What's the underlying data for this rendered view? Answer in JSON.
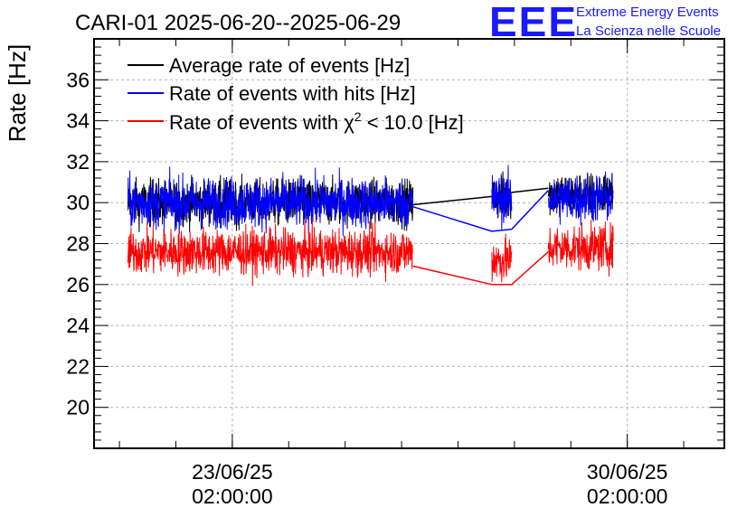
{
  "chart_data": {
    "type": "line",
    "title": "CARI-01 2025-06-20--2025-06-29",
    "ylabel": "Rate [Hz]",
    "xlabel": "",
    "ylim": [
      18,
      38
    ],
    "xlim_days": [
      -2.45,
      8.72
    ],
    "x_unit": "days since 23/06/25 02:00:00",
    "yticks": [
      20,
      22,
      24,
      26,
      28,
      30,
      32,
      34,
      36
    ],
    "xticks": [
      {
        "day": 0,
        "date": "23/06/25",
        "time": "02:00:00"
      },
      {
        "day": 7,
        "date": "30/06/25",
        "time": "02:00:00"
      }
    ],
    "grid": true,
    "legend_position": "top-left",
    "series": [
      {
        "name": "Average rate of events [Hz]",
        "color": "#000000",
        "segments": [
          {
            "x_start": -1.85,
            "x_end": 3.2,
            "mean": 30.0,
            "spread": 1.0
          },
          {
            "x_start": 4.6,
            "x_end": 4.95,
            "mean": 30.3,
            "spread": 1.0
          },
          {
            "x_start": 5.6,
            "x_end": 6.75,
            "mean": 30.4,
            "spread": 1.0
          }
        ]
      },
      {
        "name": "Rate of events with hits [Hz]",
        "color": "#0000ff",
        "segments": [
          {
            "x_start": -1.85,
            "x_end": 3.2,
            "mean": 30.0,
            "spread": 1.1
          },
          {
            "x_start": 4.6,
            "x_end": 4.95,
            "mean": 30.2,
            "spread": 1.1
          },
          {
            "x_start": 5.6,
            "x_end": 6.75,
            "mean": 30.2,
            "spread": 1.1
          }
        ]
      },
      {
        "name": "Rate of events with χ² < 10.0 [Hz]",
        "color": "#ff0000",
        "segments": [
          {
            "x_start": -1.85,
            "x_end": 3.2,
            "mean": 27.6,
            "spread": 1.0
          },
          {
            "x_start": 4.6,
            "x_end": 4.95,
            "mean": 27.2,
            "spread": 1.0
          },
          {
            "x_start": 5.6,
            "x_end": 6.75,
            "mean": 27.8,
            "spread": 1.0
          }
        ]
      }
    ],
    "gap_links": [
      {
        "series": "Average rate of events [Hz]",
        "points": [
          [
            3.2,
            29.9
          ],
          [
            4.6,
            30.3
          ],
          [
            4.95,
            30.5
          ],
          [
            5.6,
            30.7
          ]
        ]
      },
      {
        "series": "Rate of events with hits [Hz]",
        "points": [
          [
            3.2,
            29.8
          ],
          [
            4.6,
            28.6
          ],
          [
            4.95,
            28.7
          ],
          [
            5.6,
            30.6
          ]
        ]
      },
      {
        "series": "Rate of events with χ² < 10.0 [Hz]",
        "points": [
          [
            3.2,
            26.9
          ],
          [
            4.6,
            26.0
          ],
          [
            4.95,
            26.0
          ],
          [
            5.6,
            27.6
          ]
        ]
      }
    ]
  },
  "logo": {
    "mark": "EEE",
    "line1": "Extreme Energy Events",
    "line2": "La Scienza nelle Scuole",
    "color": "#1a1aff"
  },
  "legend": {
    "item1_text": "Average rate of events [Hz]",
    "item2_text": "Rate of events with hits [Hz]",
    "item3_prefix": "Rate of events with ",
    "item3_chi": "χ",
    "item3_sup": "2",
    "item3_suffix": " < 10.0 [Hz]"
  }
}
